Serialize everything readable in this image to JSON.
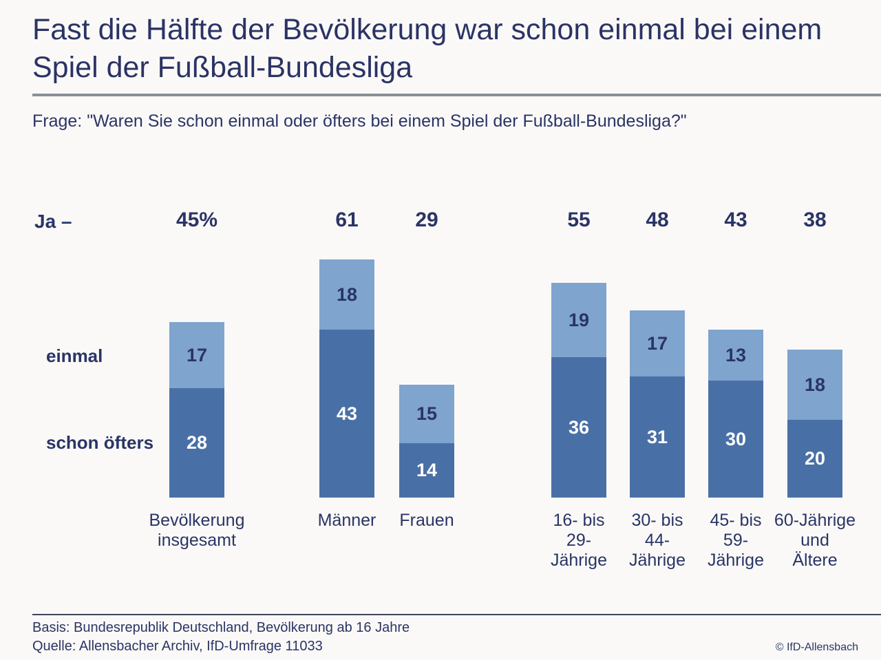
{
  "header": {
    "title": "Fast die Hälfte der Bevölkerung war schon einmal bei einem Spiel der Fußball-Bundesliga",
    "question": "Frage: \"Waren Sie schon einmal oder öfters bei einem Spiel der Fußball-Bundesliga?\""
  },
  "chart": {
    "ja_label": "Ja –"
  },
  "colors": {
    "light_blue": "#7FA4CD",
    "dark_blue": "#4970A6",
    "navy_text": "#2A3466",
    "gray_rule": "#8A8F99",
    "footer_rule": "#3E4459",
    "background": "#FAF9F7",
    "white_label": "#FFFFFF"
  },
  "chart_data": {
    "type": "bar",
    "stacked": true,
    "grid": false,
    "legend_position": "left",
    "ylim": [
      0,
      61
    ],
    "categories": [
      {
        "label": "Bevölkerung insgesamt",
        "lines": [
          "Bevölkerung",
          "insgesamt"
        ]
      },
      {
        "label": "Männer",
        "lines": [
          "Männer"
        ]
      },
      {
        "label": "Frauen",
        "lines": [
          "Frauen"
        ]
      },
      {
        "label": "16- bis 29-Jährige",
        "lines": [
          "16- bis",
          "29-",
          "Jährige"
        ]
      },
      {
        "label": "30- bis 44-Jährige",
        "lines": [
          "30- bis",
          "44-",
          "Jährige"
        ]
      },
      {
        "label": "45- bis 59-Jährige",
        "lines": [
          "45- bis",
          "59-",
          "Jährige"
        ]
      },
      {
        "label": "60-Jährige und Ältere",
        "lines": [
          "60-Jährige",
          "und",
          "Ältere"
        ]
      }
    ],
    "series": [
      {
        "name": "einmal",
        "values": [
          17,
          18,
          15,
          19,
          17,
          13,
          18
        ],
        "color": "#7FA4CD",
        "label_color": "#2A3466"
      },
      {
        "name": "schon öfters",
        "values": [
          28,
          43,
          14,
          36,
          31,
          30,
          20
        ],
        "color": "#4970A6",
        "label_color": "#FFFFFF"
      }
    ],
    "totals": [
      45,
      61,
      29,
      55,
      48,
      43,
      38
    ],
    "total_labels": [
      "45%",
      "61",
      "29",
      "55",
      "48",
      "43",
      "38"
    ]
  },
  "footer": {
    "basis": "Basis: Bundesrepublik Deutschland, Bevölkerung ab 16 Jahre",
    "quelle": "Quelle: Allensbacher Archiv, IfD-Umfrage 11033",
    "copyright": "© IfD-Allensbach"
  }
}
